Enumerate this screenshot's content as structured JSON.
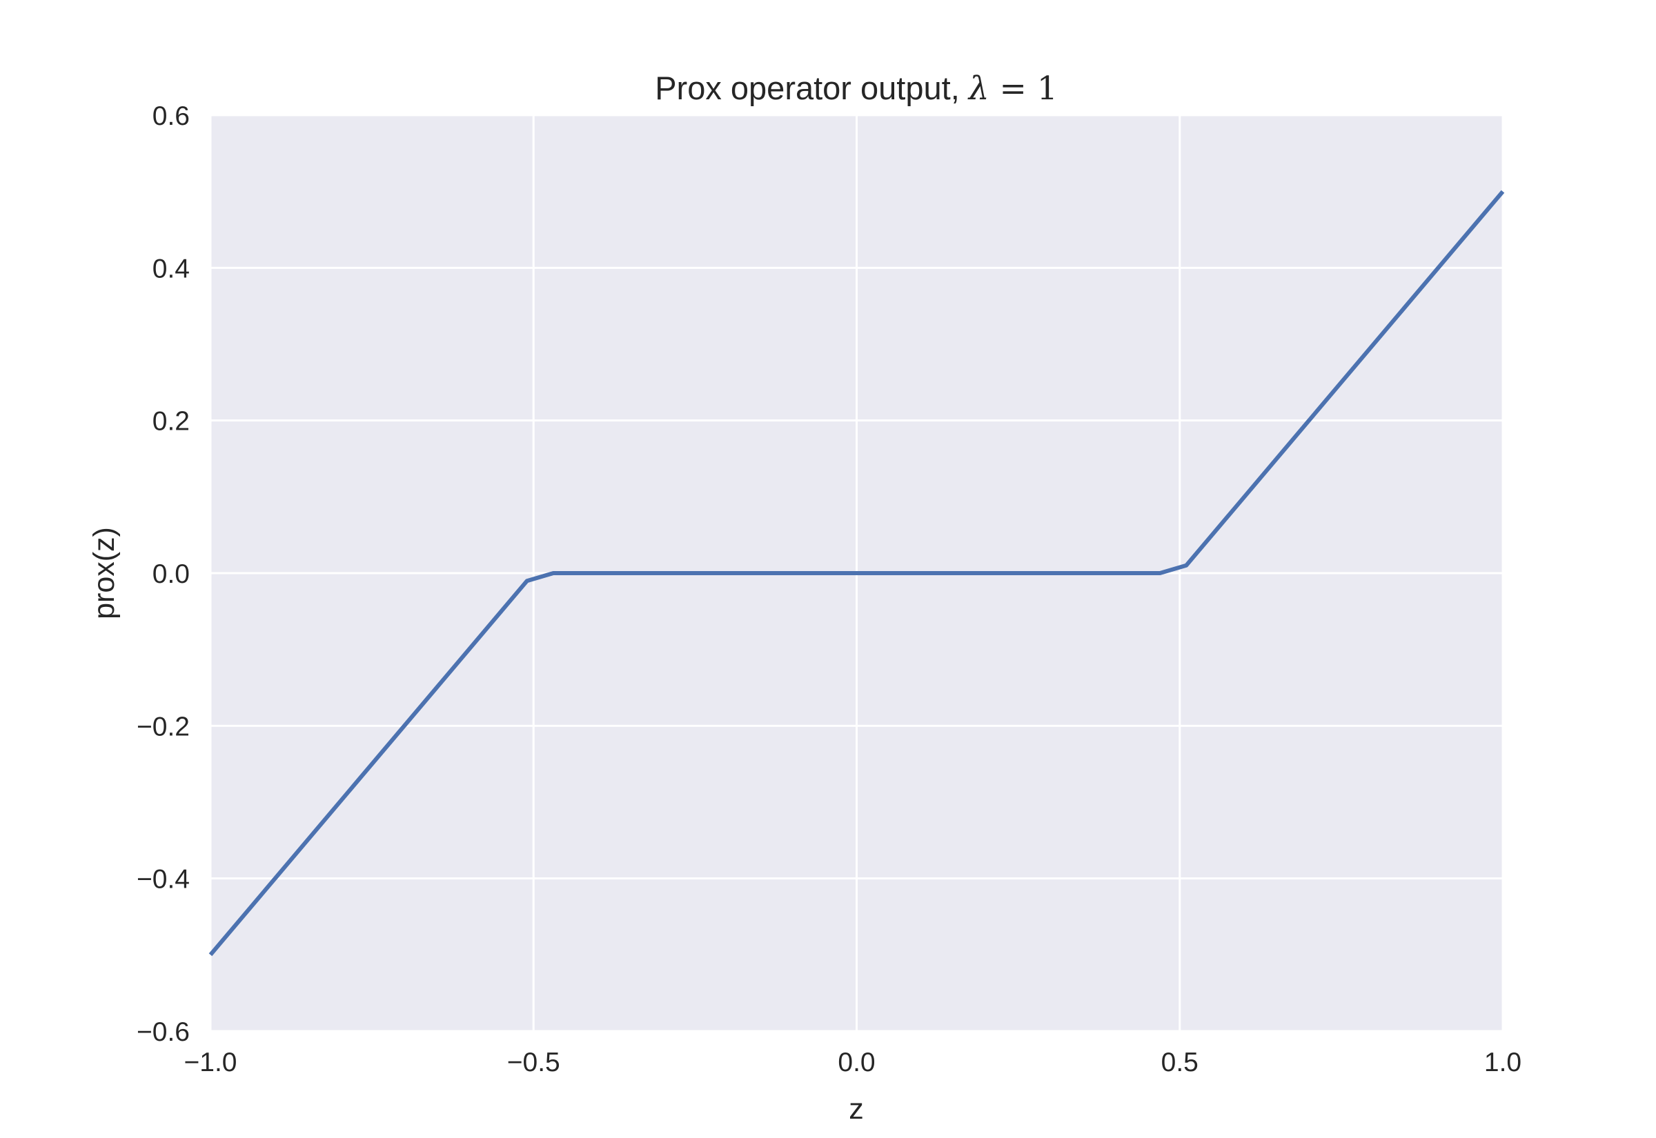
{
  "chart_data": {
    "type": "line",
    "title": "Prox operator output, ",
    "title_math": {
      "symbol": "λ",
      "relation": " = ",
      "value": "1"
    },
    "xlabel": "z",
    "ylabel": "prox(z)",
    "xlim": [
      -1.0,
      1.0
    ],
    "ylim": [
      -0.6,
      0.6
    ],
    "x_ticks": [
      -1.0,
      -0.5,
      0.0,
      0.5,
      1.0
    ],
    "x_tick_labels": [
      "−1.0",
      "−0.5",
      "0.0",
      "0.5",
      "1.0"
    ],
    "y_ticks": [
      -0.6,
      -0.4,
      -0.2,
      0.0,
      0.2,
      0.4,
      0.6
    ],
    "y_tick_labels": [
      "−0.6",
      "−0.4",
      "−0.2",
      "0.0",
      "0.2",
      "0.4",
      "0.6"
    ],
    "grid": true,
    "series": [
      {
        "x": [
          -1.0,
          -0.5102,
          -0.4694,
          0.4694,
          0.5102,
          1.0
        ],
        "y": [
          -0.5,
          -0.0102,
          0.0,
          0.0,
          0.0102,
          0.5
        ]
      }
    ],
    "colors": {
      "background": "#EAEAF2",
      "grid": "#FFFFFF",
      "line": "#4C72B0",
      "text": "#262626"
    }
  }
}
